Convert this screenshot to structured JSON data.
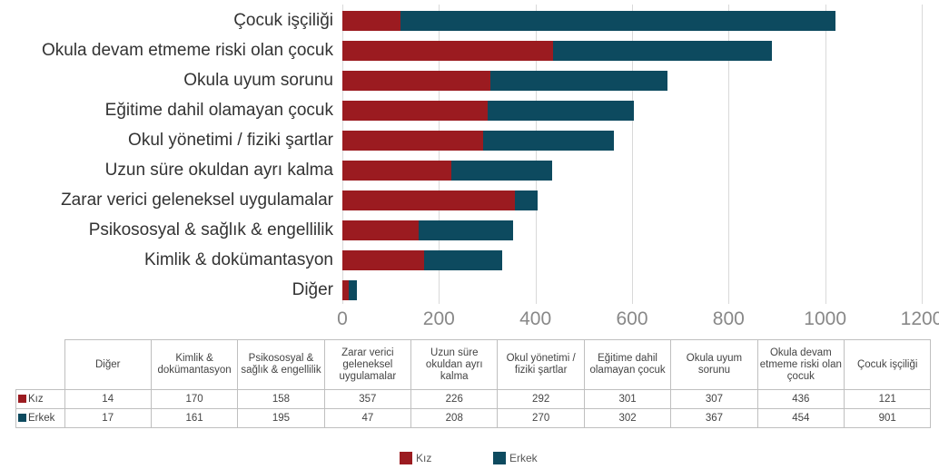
{
  "chart_data": {
    "type": "bar",
    "orientation": "horizontal",
    "stacked": true,
    "categories": [
      "Diğer",
      "Kimlik & dokümantasyon",
      "Psikososyal & sağlık & engellilik",
      "Zarar verici geleneksel uygulamalar",
      "Uzun süre okuldan ayrı kalma",
      "Okul yönetimi / fiziki şartlar",
      "Eğitime dahil olamayan çocuk",
      "Okula uyum sorunu",
      "Okula devam etmeme riski olan çocuk",
      "Çocuk işçiliği"
    ],
    "series": [
      {
        "name": "Kız",
        "color": "#9b1b20",
        "values": [
          14,
          170,
          158,
          357,
          226,
          292,
          301,
          307,
          436,
          121
        ]
      },
      {
        "name": "Erkek",
        "color": "#0d4a5f",
        "values": [
          17,
          161,
          195,
          47,
          208,
          270,
          302,
          367,
          454,
          901
        ]
      }
    ],
    "xlim": [
      0,
      1200
    ],
    "xticks": [
      0,
      200,
      400,
      600,
      800,
      1000,
      1200
    ],
    "grid": true,
    "legend": "bottom"
  }
}
